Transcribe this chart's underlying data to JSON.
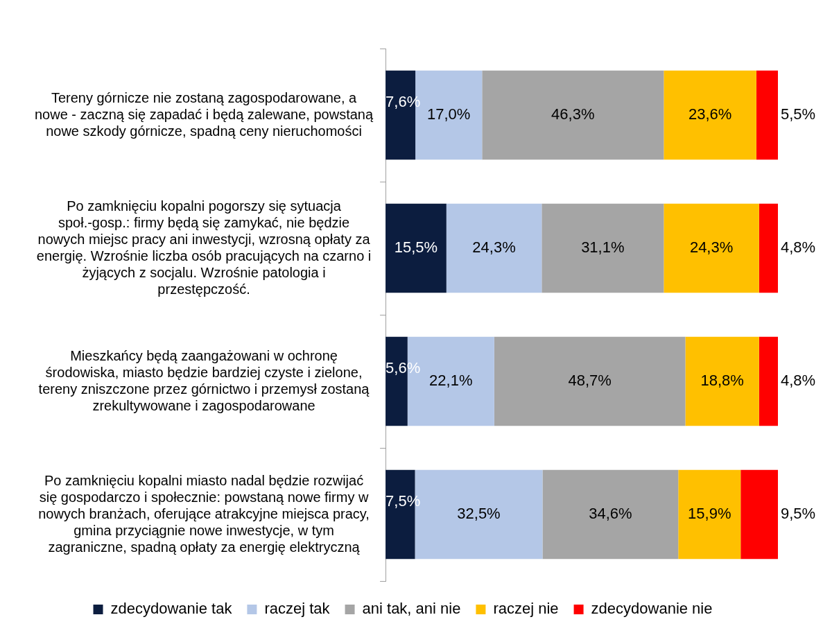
{
  "chart_data": {
    "type": "bar",
    "orientation": "horizontal",
    "stacked": true,
    "xlim": [
      0,
      100
    ],
    "tick_labels": "y",
    "legend": "bottom",
    "categories": [
      "Tereny górnicze nie zostaną zagospodarowane, a nowe - zaczną się zapadać i będą zalewane, powstaną nowe szkody górnicze, spadną ceny nieruchomości",
      "Po zamknięciu kopalni pogorszy się sytuacja społ.-gosp.: firmy będą się zamykać, nie będzie nowych miejsc pracy ani inwestycji, wzrosną opłaty za energię. Wzrośnie liczba osób pracujących na czarno i żyjących z socjalu. Wzrośnie patologia i przestępczość.",
      "Mieszkańcy będą zaangażowani w ochronę środowiska, miasto będzie bardziej czyste i zielone, tereny zniszczone przez górnictwo i przemysł zostaną zrekultywowane i zagospodarowane",
      "Po zamknięciu kopalni miasto nadal będzie rozwijać się gospodarczo i społecznie: powstaną nowe firmy w nowych branżach, oferujące atrakcyjne miejsca pracy, gmina przyciągnie nowe inwestycje, w tym zagraniczne, spadną opłaty za energię elektryczną"
    ],
    "series": [
      {
        "name": "zdecydowanie tak",
        "color": "#0c1d3f",
        "values": [
          7.6,
          15.5,
          5.6,
          7.5
        ],
        "value_labels": [
          "7,6%",
          "15,5%",
          "5,6%",
          "7,5%"
        ]
      },
      {
        "name": "raczej tak",
        "color": "#b4c7e7",
        "values": [
          17.0,
          24.3,
          22.1,
          32.5
        ],
        "value_labels": [
          "17,0%",
          "24,3%",
          "22,1%",
          "32,5%"
        ]
      },
      {
        "name": "ani tak, ani nie",
        "color": "#a5a5a5",
        "values": [
          46.3,
          31.1,
          48.7,
          34.6
        ],
        "value_labels": [
          "46,3%",
          "31,1%",
          "48,7%",
          "34,6%"
        ]
      },
      {
        "name": "raczej nie",
        "color": "#ffc000",
        "values": [
          23.6,
          24.3,
          18.8,
          15.9
        ],
        "value_labels": [
          "23,6%",
          "24,3%",
          "18,8%",
          "15,9%"
        ]
      },
      {
        "name": "zdecydowanie nie",
        "color": "#ff0000",
        "values": [
          5.5,
          4.8,
          4.8,
          9.5
        ],
        "value_labels": [
          "5,5%",
          "4,8%",
          "4,8%",
          "9,5%"
        ]
      }
    ]
  }
}
